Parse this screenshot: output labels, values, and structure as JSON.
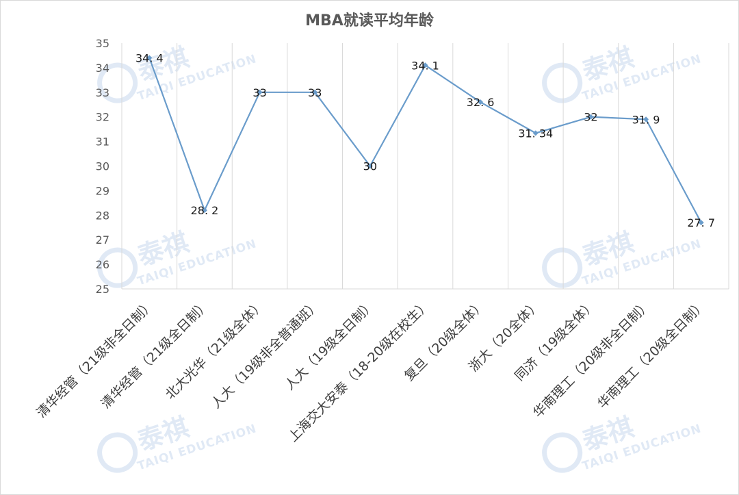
{
  "chart_data": {
    "type": "line",
    "title": "MBA就读平均年龄",
    "categories": [
      "清华经管（21级非全日制）",
      "清华经管（21级全日制）",
      "北大光华（21级全体）",
      "人大（19级非全普通班）",
      "人大（19级全日制）",
      "上海交大安泰（18-20级在校生）",
      "复旦（20级全体）",
      "浙大（20全体）",
      "同济（19级全体）",
      "华南理工（20级非全日制）",
      "华南理工（20级全日制）"
    ],
    "values": [
      34.4,
      28.2,
      33,
      33,
      30,
      34.1,
      32.6,
      31.34,
      32,
      31.9,
      27.7
    ],
    "data_labels": [
      "34. 4",
      "28. 2",
      "33",
      "33",
      "30",
      "34. 1",
      "32. 6",
      "31. 34",
      "32",
      "31. 9",
      "27. 7"
    ],
    "ylim": [
      25,
      35
    ],
    "yticks": [
      25,
      26,
      27,
      28,
      29,
      30,
      31,
      32,
      33,
      34,
      35
    ],
    "grid": "vertical",
    "line_color": "#6a9ccb"
  },
  "watermark": {
    "brand_cn": "泰祺",
    "brand_en": "TAIQI EDUCATION",
    "color": "#c7d8ee"
  }
}
